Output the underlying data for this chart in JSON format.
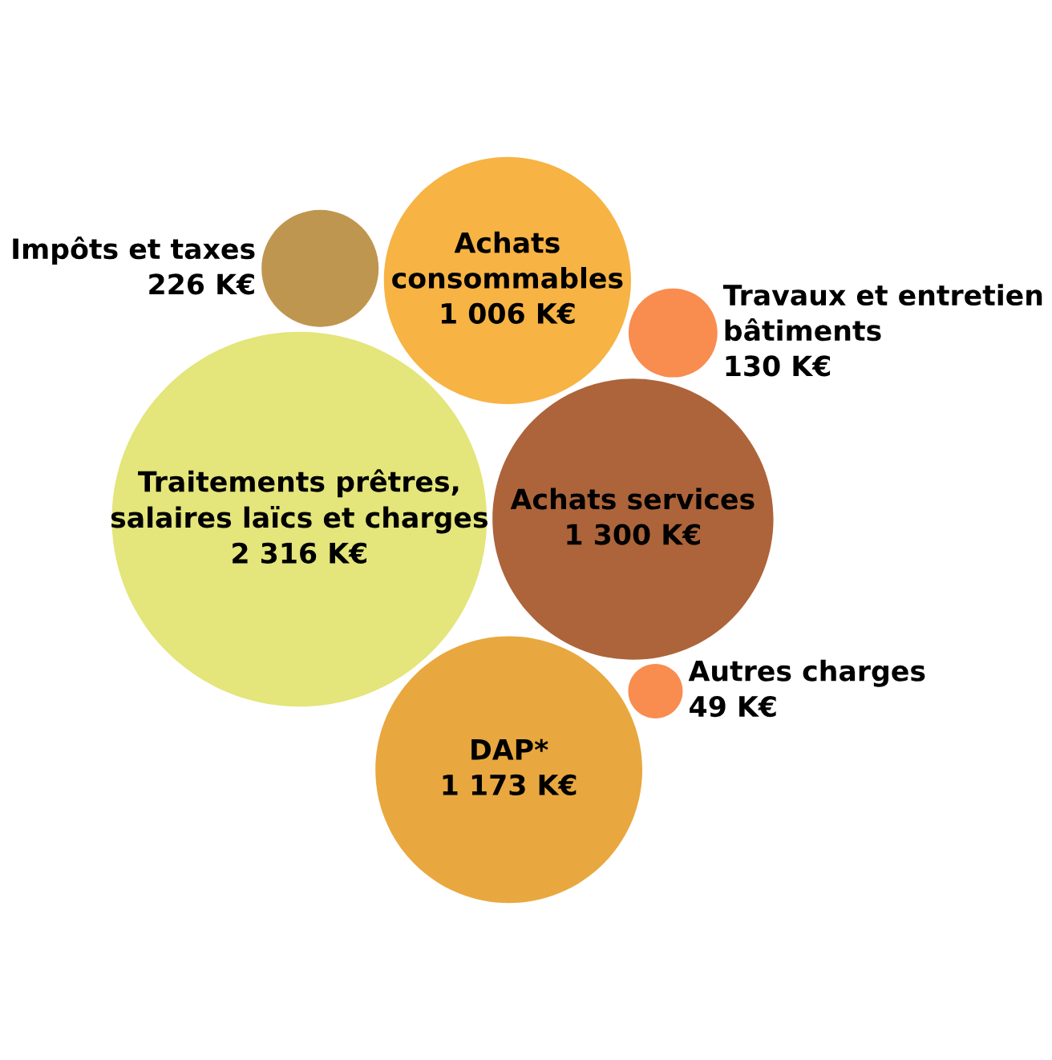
{
  "chart_data": {
    "type": "other",
    "categories": [
      "Traitements prêtres,\nsalaires laïcs et charges",
      "Achats services",
      "DAP*",
      "Achats\nconsommables",
      "Impôts et taxes",
      "Travaux et entretien\nbâtiments",
      "Autres charges"
    ],
    "values": [
      2316,
      1300,
      1173,
      1006,
      226,
      130,
      49
    ],
    "value_labels": [
      "2 316 K€",
      "1 300 K€",
      "1 173 K€",
      "1 006 K€",
      "226 K€",
      "130 K€",
      "49 K€"
    ],
    "colors": [
      "#e4e57a",
      "#ad643a",
      "#e8a83f",
      "#f7b343",
      "#bf9650",
      "#f98c4f",
      "#f98c4f"
    ]
  }
}
